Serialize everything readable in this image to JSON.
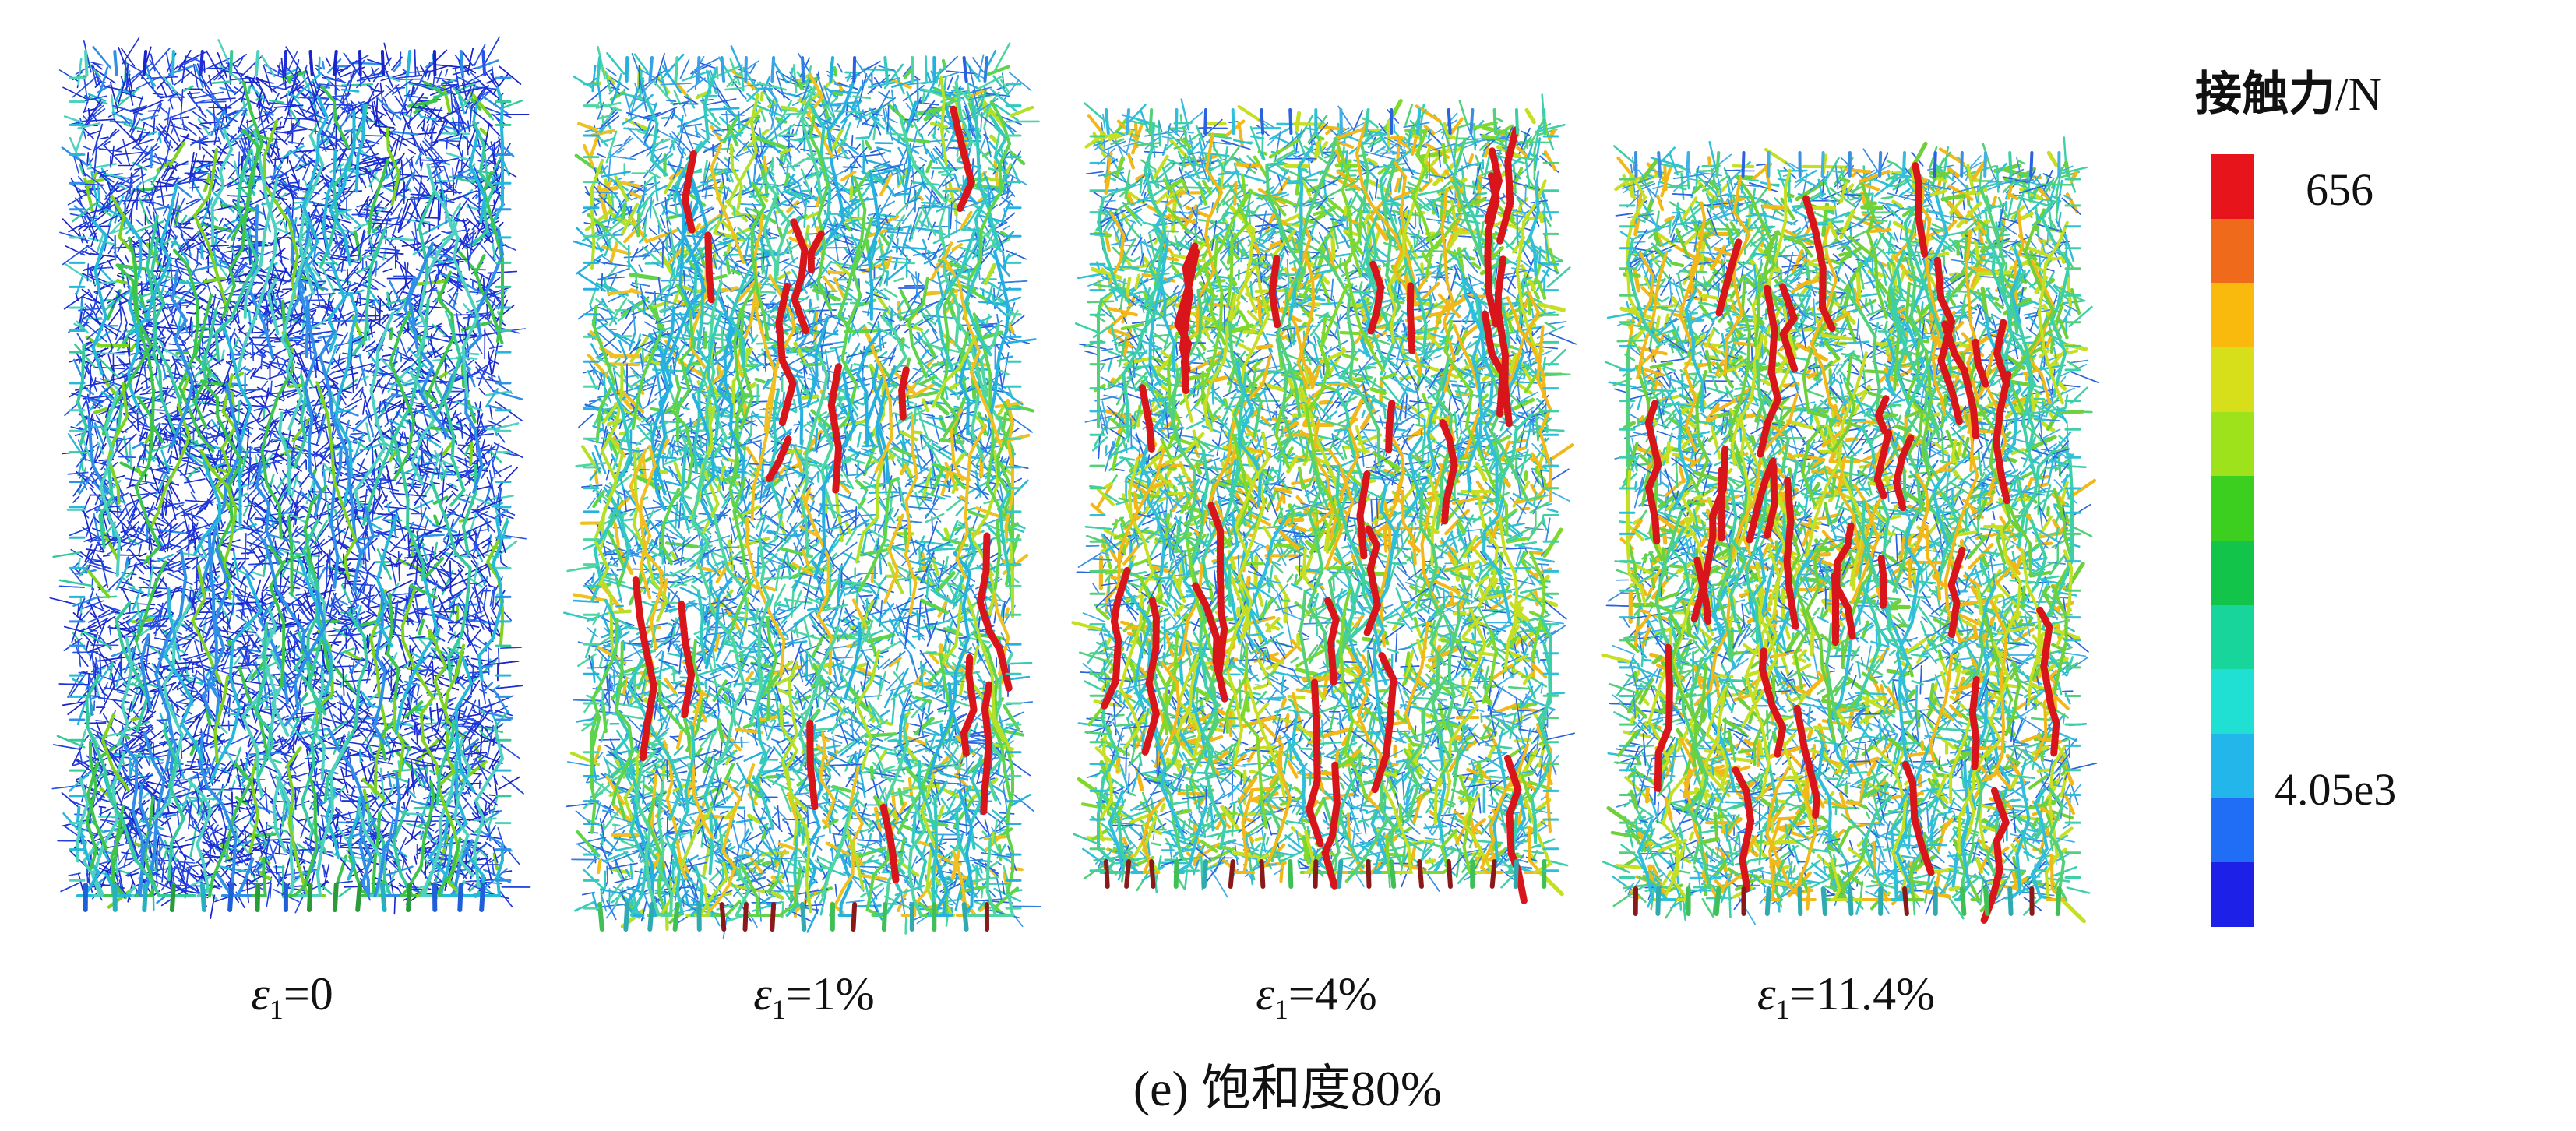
{
  "panels": [
    {
      "symbol": "ε",
      "sub": "1",
      "value": "=0",
      "palette": "low"
    },
    {
      "symbol": "ε",
      "sub": "1",
      "value": "=1%",
      "palette": "mid"
    },
    {
      "symbol": "ε",
      "sub": "1",
      "value": "=4%",
      "palette": "high"
    },
    {
      "symbol": "ε",
      "sub": "1",
      "value": "=11.4%",
      "palette": "high2"
    }
  ],
  "caption": "(e) 饱和度80%",
  "legend": {
    "title_cjk": "接触力",
    "title_unit": "/N",
    "max_label": "656",
    "min_label": "4.05e3",
    "colors": [
      "#e8141b",
      "#f06a1c",
      "#f9b90d",
      "#d7de1a",
      "#9ee21c",
      "#3ccf1f",
      "#12c449",
      "#17d59b",
      "#1fe0d3",
      "#22b6ea",
      "#1f6ef5",
      "#1d20e6"
    ]
  }
}
